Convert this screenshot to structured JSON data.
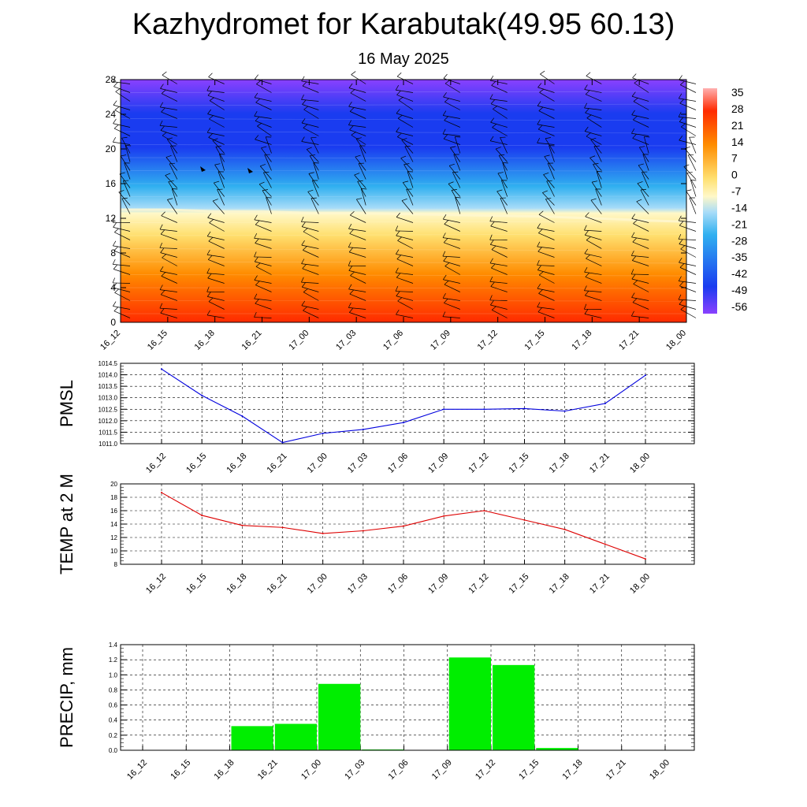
{
  "title": "Kazhydromet for Karabutak(49.95 60.13)",
  "subtitle": "16 May 2025",
  "chart_data": [
    {
      "type": "heatmap",
      "name": "temperature-wind-profile",
      "x_labels": [
        "16_12",
        "16_15",
        "16_18",
        "16_21",
        "17_00",
        "17_03",
        "17_06",
        "17_09",
        "17_12",
        "17_15",
        "17_18",
        "17_21",
        "18_00"
      ],
      "y_ticks": [
        0,
        4,
        8,
        12,
        16,
        20,
        24,
        28
      ],
      "ylim": [
        0,
        28
      ],
      "colorbar_ticks": [
        35,
        28,
        21,
        14,
        7,
        0,
        -7,
        -14,
        -21,
        -28,
        -35,
        -42,
        -49,
        -56
      ],
      "colorbar_range": [
        -63,
        42
      ],
      "freezing_level": [
        13.0,
        13.0,
        12.8,
        12.8,
        12.6,
        12.6,
        12.5,
        12.4,
        12.3,
        12.2,
        12.0,
        11.8,
        11.6
      ],
      "colors": {
        "hot": "#ff2a00",
        "orange": "#ff8c00",
        "yellow": "#ffe070",
        "pale": "#fff8c8",
        "ice": "#a8dcf8",
        "cyan": "#30b0f0",
        "blue": "#1a3cf0",
        "violet": "#8a40ff"
      }
    },
    {
      "type": "line",
      "name": "pmsl",
      "ylabel": "PMSL",
      "categories": [
        "16_12",
        "16_15",
        "16_18",
        "16_21",
        "17_00",
        "17_03",
        "17_06",
        "17_09",
        "17_12",
        "17_15",
        "17_18",
        "17_21",
        "18_00"
      ],
      "values": [
        1014.25,
        1013.1,
        1012.2,
        1011.05,
        1011.45,
        1011.62,
        1011.92,
        1012.5,
        1012.5,
        1012.53,
        1012.42,
        1012.75,
        1013.98
      ],
      "ylim": [
        1011.0,
        1014.5
      ],
      "y_ticks": [
        "1011.0",
        "1011.5",
        "1012.0",
        "1012.5",
        "1013.0",
        "1013.5",
        "1014.0",
        "1014.5"
      ],
      "color": "#0000dd"
    },
    {
      "type": "line",
      "name": "temp",
      "ylabel": "TEMP at 2 M",
      "categories": [
        "16_12",
        "16_15",
        "16_18",
        "16_21",
        "17_00",
        "17_03",
        "17_06",
        "17_09",
        "17_12",
        "17_15",
        "17_18",
        "17_21",
        "18_00"
      ],
      "values": [
        18.7,
        15.3,
        13.8,
        13.5,
        12.6,
        13.0,
        13.7,
        15.2,
        16.0,
        14.6,
        13.2,
        11.0,
        8.8
      ],
      "ylim": [
        8,
        20
      ],
      "y_ticks": [
        "8",
        "10",
        "12",
        "14",
        "16",
        "18",
        "20"
      ],
      "color": "#dd0000"
    },
    {
      "type": "bar",
      "name": "precip",
      "ylabel": "PRECIP, mm",
      "categories": [
        "16_12",
        "16_15",
        "16_18",
        "16_21",
        "17_00",
        "17_03",
        "17_06",
        "17_09",
        "17_12",
        "17_15",
        "17_18",
        "17_21",
        "18_00"
      ],
      "values": [
        0,
        0,
        0.32,
        0.35,
        0.88,
        0.01,
        0,
        1.23,
        1.13,
        0.03,
        0,
        0,
        0
      ],
      "ylim": [
        0,
        1.4
      ],
      "y_ticks": [
        "0.0",
        "0.2",
        "0.4",
        "0.6",
        "0.8",
        "1.0",
        "1.2",
        "1.4"
      ],
      "color": "#00ee00"
    }
  ]
}
